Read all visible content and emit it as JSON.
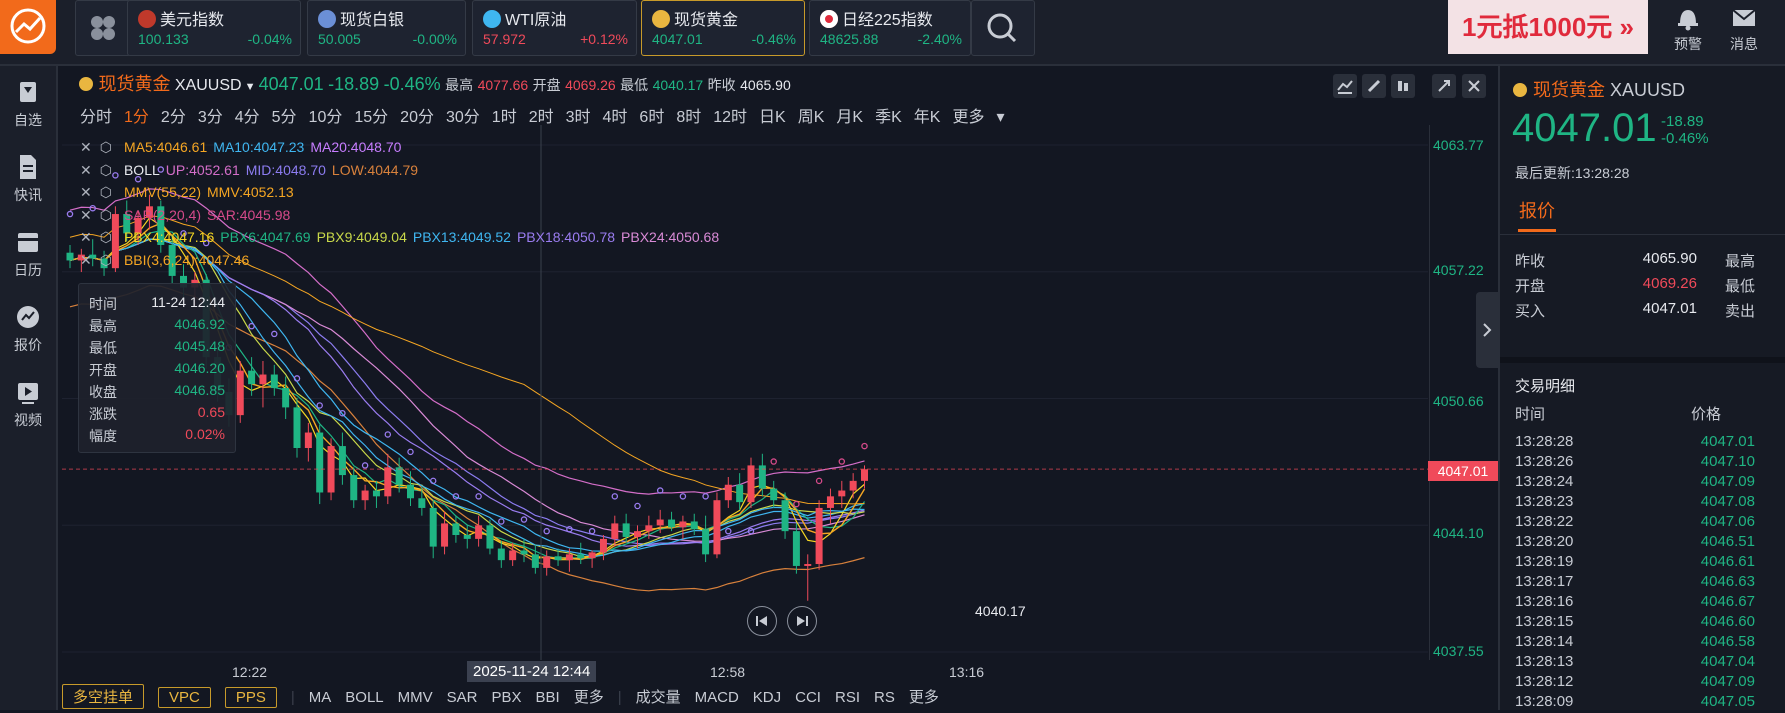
{
  "topbar": {
    "tickers": [
      {
        "name": "美元指数",
        "price": "100.133",
        "pct": "-0.04%",
        "flag": "us-flag-icon",
        "price_color": "green",
        "pct_color": "green"
      },
      {
        "name": "现货白银",
        "price": "50.005",
        "pct": "-0.00%",
        "flag": "silver-icon",
        "price_color": "green",
        "pct_color": "green"
      },
      {
        "name": "WTI原油",
        "price": "57.972",
        "pct": "+0.12%",
        "flag": "oil-icon",
        "price_color": "red",
        "pct_color": "red"
      },
      {
        "name": "现货黄金",
        "price": "4047.01",
        "pct": "-0.46%",
        "flag": "gold-icon",
        "price_color": "green",
        "pct_color": "green"
      },
      {
        "name": "日经225指数",
        "price": "48625.88",
        "pct": "-2.40%",
        "flag": "japan-flag-icon",
        "price_color": "green",
        "pct_color": "green"
      }
    ],
    "ad_text": "1元抵1000元 »",
    "alert_label": "预警",
    "message_label": "消息"
  },
  "sidebar": {
    "items": [
      {
        "label": "自选",
        "icon": "bookmark-icon"
      },
      {
        "label": "快讯",
        "icon": "document-icon"
      },
      {
        "label": "日历",
        "icon": "calendar-icon"
      },
      {
        "label": "报价",
        "icon": "quote-icon"
      },
      {
        "label": "视频",
        "icon": "video-icon"
      }
    ]
  },
  "chart_header": {
    "name": "现货黄金",
    "symbol": "XAUUSD",
    "price": "4047.01",
    "change": "-18.89",
    "pct": "-0.46%",
    "high_label": "最高",
    "high": "4077.66",
    "open_label": "开盘",
    "open": "4069.26",
    "low_label": "最低",
    "low": "4040.17",
    "prev_label": "昨收",
    "prev": "4065.90"
  },
  "periods": [
    "分时",
    "1分",
    "2分",
    "3分",
    "4分",
    "5分",
    "10分",
    "15分",
    "20分",
    "30分",
    "1时",
    "2时",
    "3时",
    "4时",
    "6时",
    "8时",
    "12时",
    "日K",
    "周K",
    "月K",
    "季K",
    "年K",
    "更多"
  ],
  "active_period": "1分",
  "indicators": [
    [
      {
        "t": "MA5:4046.61",
        "c": "#f5a623"
      },
      {
        "t": "MA10:4047.23",
        "c": "#3fb6f0"
      },
      {
        "t": "MA20:4048.70",
        "c": "#c77dff"
      }
    ],
    [
      {
        "t": "BOLL",
        "c": "#e7e9ee"
      },
      {
        "t": "UP:4052.61",
        "c": "#d46ec9"
      },
      {
        "t": "MID:4048.70",
        "c": "#8c7cf0"
      },
      {
        "t": "LOW:4044.79",
        "c": "#d8813c"
      }
    ],
    [
      {
        "t": "MMV(55,22)",
        "c": "#f5a623"
      },
      {
        "t": "MMV:4052.13",
        "c": "#f5a623"
      }
    ],
    [
      {
        "t": "SAR(2,20,4)",
        "c": "#d64a8a"
      },
      {
        "t": "SAR:4045.98",
        "c": "#d64a8a"
      }
    ],
    [
      {
        "t": "PBX4:4047.16",
        "c": "#f5d623"
      },
      {
        "t": "PBX6:4047.69",
        "c": "#1fb584"
      },
      {
        "t": "PBX9:4049.04",
        "c": "#c8d84a"
      },
      {
        "t": "PBX13:4049.52",
        "c": "#3fb6f0"
      },
      {
        "t": "PBX18:4050.78",
        "c": "#9a7cf0"
      },
      {
        "t": "PBX24:4050.68",
        "c": "#d98ad6"
      }
    ],
    [
      {
        "t": "BBI(3,6,24):4047.46",
        "c": "#f5a623"
      }
    ]
  ],
  "tooltip": {
    "rows": [
      {
        "k": "时间",
        "v": "11-24 12:44",
        "c": "white"
      },
      {
        "k": "最高",
        "v": "4046.92",
        "c": "green"
      },
      {
        "k": "最低",
        "v": "4045.48",
        "c": "green"
      },
      {
        "k": "开盘",
        "v": "4046.20",
        "c": "green"
      },
      {
        "k": "收盘",
        "v": "4046.85",
        "c": "green"
      },
      {
        "k": "涨跌",
        "v": "0.65",
        "c": "red"
      },
      {
        "k": "幅度",
        "v": "0.02%",
        "c": "red"
      }
    ]
  },
  "chart_data": {
    "type": "candlestick",
    "y_ticks": [
      "4063.77",
      "4057.22",
      "4050.66",
      "4044.10",
      "4037.55"
    ],
    "ylim": [
      4037.55,
      4063.77
    ],
    "x_ticks": [
      "12:22",
      "12:58",
      "13:16"
    ],
    "crosshair_time": "2025-11-24 12:44",
    "current_price": "4047.01",
    "low_marker": "4040.17",
    "candles": [
      [
        4058.2,
        4058.6,
        4057.4,
        4057.8
      ],
      [
        4057.8,
        4058.4,
        4057.2,
        4058.1
      ],
      [
        4058.1,
        4058.9,
        4057.5,
        4057.9
      ],
      [
        4057.9,
        4058.3,
        4057.0,
        4057.4
      ],
      [
        4057.4,
        4060.6,
        4057.2,
        4060.2
      ],
      [
        4060.2,
        4060.9,
        4058.8,
        4059.2
      ],
      [
        4059.2,
        4060.4,
        4058.6,
        4060.0
      ],
      [
        4060.0,
        4061.2,
        4059.4,
        4060.6
      ],
      [
        4060.6,
        4060.9,
        4058.2,
        4058.6
      ],
      [
        4058.6,
        4059.1,
        4056.6,
        4057.0
      ],
      [
        4057.0,
        4057.6,
        4055.8,
        4056.4
      ],
      [
        4056.4,
        4057.2,
        4055.4,
        4056.8
      ],
      [
        4056.8,
        4057.1,
        4052.2,
        4052.8
      ],
      [
        4052.8,
        4053.4,
        4050.5,
        4051.0
      ],
      [
        4051.0,
        4051.7,
        4049.2,
        4049.8
      ],
      [
        4049.8,
        4052.6,
        4049.4,
        4052.1
      ],
      [
        4052.1,
        4052.8,
        4050.8,
        4051.4
      ],
      [
        4051.4,
        4052.6,
        4050.2,
        4051.9
      ],
      [
        4051.9,
        4052.4,
        4050.8,
        4051.2
      ],
      [
        4051.2,
        4051.8,
        4049.6,
        4050.2
      ],
      [
        4050.2,
        4050.7,
        4047.6,
        4048.1
      ],
      [
        4048.1,
        4049.4,
        4047.4,
        4048.9
      ],
      [
        4048.9,
        4049.3,
        4045.2,
        4045.8
      ],
      [
        4045.8,
        4048.6,
        4045.4,
        4048.2
      ],
      [
        4048.2,
        4048.9,
        4046.2,
        4046.7
      ],
      [
        4046.7,
        4047.1,
        4045.0,
        4045.4
      ],
      [
        4045.4,
        4046.2,
        4044.9,
        4045.9
      ],
      [
        4045.9,
        4046.4,
        4045.0,
        4045.6
      ],
      [
        4045.6,
        4047.8,
        4045.2,
        4047.1
      ],
      [
        4047.1,
        4047.6,
        4045.8,
        4046.2
      ],
      [
        4046.2,
        4046.9,
        4045.1,
        4045.5
      ],
      [
        4045.5,
        4046.1,
        4044.6,
        4045.0
      ],
      [
        4045.0,
        4045.4,
        4042.4,
        4043.0
      ],
      [
        4043.0,
        4044.8,
        4042.6,
        4044.2
      ],
      [
        4044.2,
        4044.6,
        4043.2,
        4043.6
      ],
      [
        4043.6,
        4044.1,
        4042.9,
        4043.4
      ],
      [
        4043.4,
        4044.6,
        4043.0,
        4044.1
      ],
      [
        4044.1,
        4044.4,
        4042.6,
        4042.9
      ],
      [
        4042.9,
        4043.3,
        4041.9,
        4042.3
      ],
      [
        4042.3,
        4043.2,
        4042.0,
        4042.8
      ],
      [
        4042.8,
        4043.4,
        4042.2,
        4042.6
      ],
      [
        4042.6,
        4043.1,
        4041.6,
        4041.9
      ],
      [
        4041.9,
        4042.8,
        4041.5,
        4042.5
      ],
      [
        4042.5,
        4042.9,
        4042.0,
        4042.3
      ],
      [
        4042.3,
        4042.9,
        4041.7,
        4042.6
      ],
      [
        4042.6,
        4043.2,
        4042.1,
        4042.4
      ],
      [
        4042.4,
        4042.8,
        4041.9,
        4042.7
      ],
      [
        4042.7,
        4043.6,
        4042.3,
        4043.4
      ],
      [
        4043.4,
        4044.6,
        4043.0,
        4044.2
      ],
      [
        4044.2,
        4044.7,
        4043.2,
        4043.5
      ],
      [
        4043.5,
        4044.1,
        4042.9,
        4043.8
      ],
      [
        4043.8,
        4044.6,
        4043.4,
        4044.1
      ],
      [
        4044.1,
        4044.9,
        4043.7,
        4044.4
      ],
      [
        4044.4,
        4044.8,
        4043.8,
        4044.0
      ],
      [
        4044.0,
        4044.6,
        4043.4,
        4044.3
      ],
      [
        4044.3,
        4044.7,
        4043.6,
        4043.9
      ],
      [
        4043.9,
        4044.6,
        4042.2,
        4042.6
      ],
      [
        4042.6,
        4045.8,
        4042.4,
        4045.4
      ],
      [
        4045.4,
        4046.6,
        4045.0,
        4046.2
      ],
      [
        4046.2,
        4046.8,
        4044.9,
        4045.3
      ],
      [
        4045.3,
        4047.6,
        4045.0,
        4047.2
      ],
      [
        4047.2,
        4047.8,
        4045.6,
        4046.0
      ],
      [
        4046.0,
        4046.4,
        4045.0,
        4045.4
      ],
      [
        4045.4,
        4045.8,
        4043.4,
        4043.8
      ],
      [
        4043.8,
        4044.2,
        4041.6,
        4042.0
      ],
      [
        4042.0,
        4042.6,
        4040.2,
        4042.1
      ],
      [
        4042.1,
        4045.4,
        4041.8,
        4045.0
      ],
      [
        4045.0,
        4046.0,
        4044.2,
        4045.6
      ],
      [
        4045.6,
        4046.4,
        4045.0,
        4045.9
      ],
      [
        4045.9,
        4046.8,
        4045.5,
        4046.4
      ],
      [
        4046.4,
        4047.2,
        4046.0,
        4047.0
      ]
    ]
  },
  "bottombar": {
    "chips": [
      "多空挂单",
      "VPC",
      "PPS"
    ],
    "main_items": [
      "MA",
      "BOLL",
      "MMV",
      "SAR",
      "PBX",
      "BBI",
      "更多"
    ],
    "sub_items": [
      "成交量",
      "MACD",
      "KDJ",
      "CCI",
      "RSI",
      "RS",
      "更多"
    ]
  },
  "right_panel": {
    "name": "现货黄金",
    "symbol": "XAUUSD",
    "price": "4047.01",
    "change": "-18.89",
    "pct": "-0.46%",
    "updated": "最后更新:13:28:28",
    "tab": "报价",
    "quote_rows": [
      {
        "k": "昨收",
        "v": "4065.90",
        "c": "white",
        "k2": "最高"
      },
      {
        "k": "开盘",
        "v": "4069.26",
        "c": "red",
        "k2": "最低"
      },
      {
        "k": "买入",
        "v": "4047.01",
        "c": "white",
        "k2": "卖出"
      }
    ],
    "trades_title": "交易明细",
    "trades_time_header": "时间",
    "trades_price_header": "价格",
    "trades": [
      {
        "t": "13:28:28",
        "p": "4047.01"
      },
      {
        "t": "13:28:26",
        "p": "4047.10"
      },
      {
        "t": "13:28:24",
        "p": "4047.09"
      },
      {
        "t": "13:28:23",
        "p": "4047.08"
      },
      {
        "t": "13:28:22",
        "p": "4047.06"
      },
      {
        "t": "13:28:20",
        "p": "4046.51"
      },
      {
        "t": "13:28:19",
        "p": "4046.61"
      },
      {
        "t": "13:28:17",
        "p": "4046.63"
      },
      {
        "t": "13:28:16",
        "p": "4046.67"
      },
      {
        "t": "13:28:15",
        "p": "4046.60"
      },
      {
        "t": "13:28:14",
        "p": "4046.58"
      },
      {
        "t": "13:28:13",
        "p": "4047.04"
      },
      {
        "t": "13:28:12",
        "p": "4047.09"
      },
      {
        "t": "13:28:09",
        "p": "4047.05"
      }
    ]
  }
}
